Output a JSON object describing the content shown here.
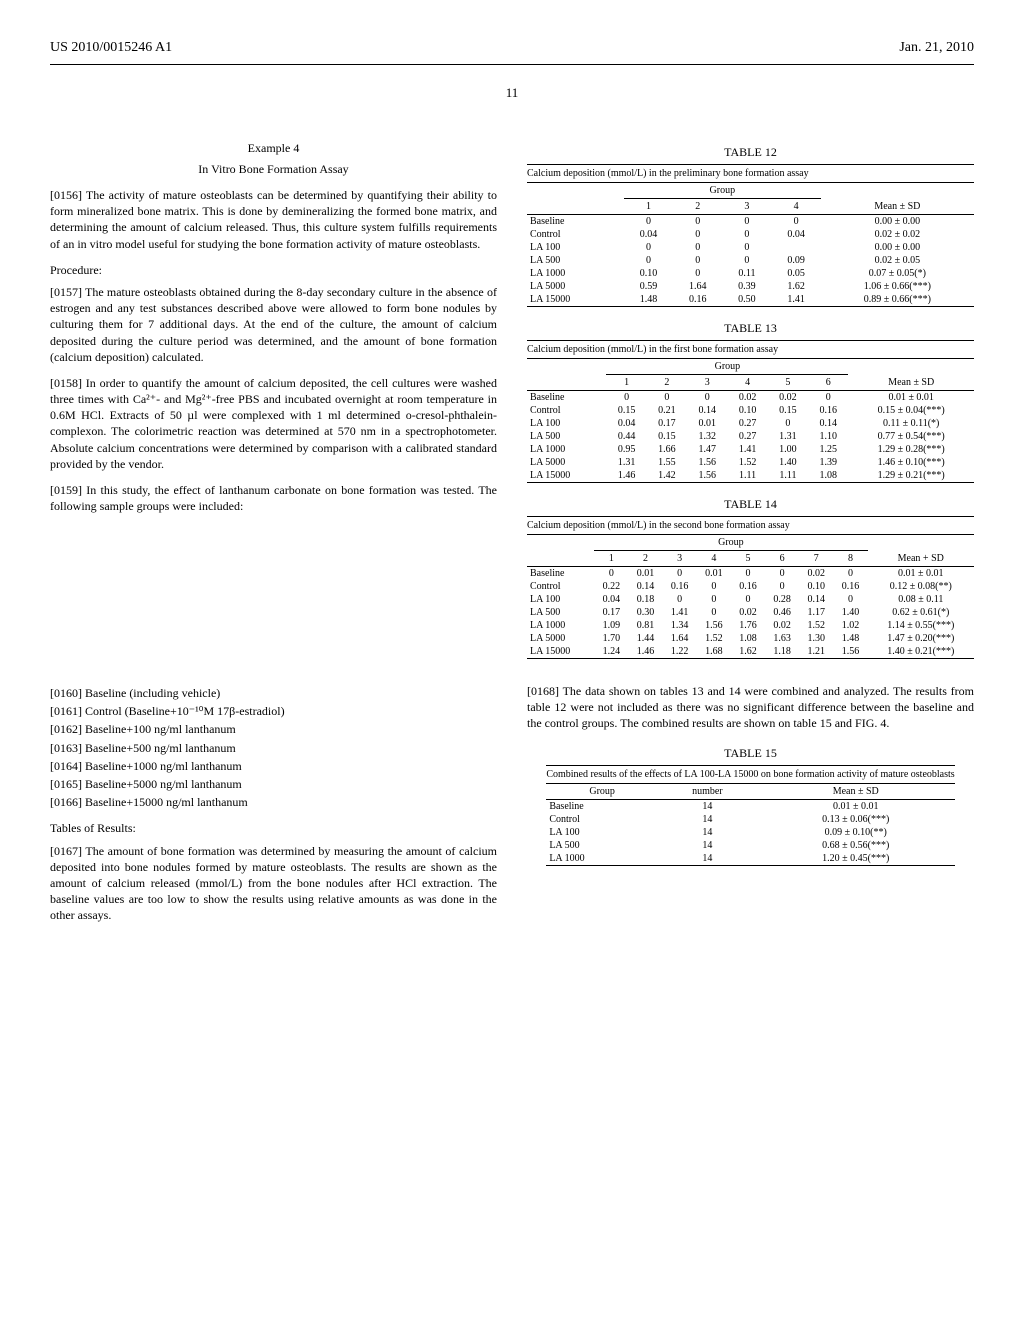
{
  "header": {
    "left": "US 2010/0015246 A1",
    "right": "Jan. 21, 2010"
  },
  "page_number": "11",
  "left_col": {
    "example_label": "Example 4",
    "example_title": "In Vitro Bone Formation Assay",
    "p156": "[0156]   The activity of mature osteoblasts can be determined by quantifying their ability to form mineralized bone matrix. This is done by demineralizing the formed bone matrix, and determining the amount of calcium released. Thus, this culture system fulfills requirements of an in vitro model useful for studying the bone formation activity of mature osteoblasts.",
    "procedure_label": "Procedure:",
    "p157": "[0157]   The mature osteoblasts obtained during the 8-day secondary culture in the absence of estrogen and any test substances described above were allowed to form bone nodules by culturing them for 7 additional days. At the end of the culture, the amount of calcium deposited during the culture period was determined, and the amount of bone formation (calcium deposition) calculated.",
    "p158": "[0158]   In order to quantify the amount of calcium deposited, the cell cultures were washed three times with Ca²⁺- and Mg²⁺-free PBS and incubated overnight at room temperature in 0.6M HCl. Extracts of 50 µl were complexed with 1 ml determined o-cresol-phthalein-complexon. The colorimetric reaction was determined at 570 nm in a spectrophotometer. Absolute calcium concentrations were determined by comparison with a calibrated standard provided by the vendor.",
    "p159": "[0159]   In this study, the effect of lanthanum carbonate on bone formation was tested. The following sample groups were included:",
    "list": [
      "[0160]   Baseline (including vehicle)",
      "[0161]   Control (Baseline+10⁻¹⁰M 17β-estradiol)",
      "[0162]   Baseline+100 ng/ml lanthanum",
      "[0163]   Baseline+500 ng/ml lanthanum",
      "[0164]   Baseline+1000 ng/ml lanthanum",
      "[0165]   Baseline+5000 ng/ml lanthanum",
      "[0166]   Baseline+15000 ng/ml lanthanum"
    ],
    "results_label": "Tables of Results:",
    "p167": "[0167]   The amount of bone formation was determined by measuring the amount of calcium deposited into bone nodules formed by mature osteoblasts. The results are shown as the amount of calcium released (mmol/L) from the bone nodules after HCl extraction. The baseline values are too low to show the results using relative amounts as was done in the other assays."
  },
  "table12": {
    "label": "TABLE 12",
    "caption": "Calcium deposition (mmol/L) in the preliminary bone formation assay",
    "group_label": "Group",
    "cols": [
      "",
      "1",
      "2",
      "3",
      "4",
      "Mean ± SD"
    ],
    "rows": [
      [
        "Baseline",
        "0",
        "0",
        "0",
        "0",
        "0.00 ± 0.00"
      ],
      [
        "Control",
        "0.04",
        "0",
        "0",
        "0.04",
        "0.02 ± 0.02"
      ],
      [
        "LA 100",
        "0",
        "0",
        "0",
        "",
        "0.00 ± 0.00"
      ],
      [
        "LA 500",
        "0",
        "0",
        "0",
        "0.09",
        "0.02 ± 0.05"
      ],
      [
        "LA 1000",
        "0.10",
        "0",
        "0.11",
        "0.05",
        "0.07 ± 0.05(*)"
      ],
      [
        "LA 5000",
        "0.59",
        "1.64",
        "0.39",
        "1.62",
        "1.06 ± 0.66(***)"
      ],
      [
        "LA 15000",
        "1.48",
        "0.16",
        "0.50",
        "1.41",
        "0.89 ± 0.66(***)"
      ]
    ]
  },
  "table13": {
    "label": "TABLE 13",
    "caption": "Calcium deposition (mmol/L) in the first bone formation assay",
    "group_label": "Group",
    "cols": [
      "",
      "1",
      "2",
      "3",
      "4",
      "5",
      "6",
      "Mean ± SD"
    ],
    "rows": [
      [
        "Baseline",
        "0",
        "0",
        "0",
        "0.02",
        "0.02",
        "0",
        "0.01 ± 0.01"
      ],
      [
        "Control",
        "0.15",
        "0.21",
        "0.14",
        "0.10",
        "0.15",
        "0.16",
        "0.15 ± 0.04(***)"
      ],
      [
        "LA 100",
        "0.04",
        "0.17",
        "0.01",
        "0.27",
        "0",
        "0.14",
        "0.11 ± 0.11(*)"
      ],
      [
        "LA 500",
        "0.44",
        "0.15",
        "1.32",
        "0.27",
        "1.31",
        "1.10",
        "0.77 ± 0.54(***)"
      ],
      [
        "LA 1000",
        "0.95",
        "1.66",
        "1.47",
        "1.41",
        "1.00",
        "1.25",
        "1.29 ± 0.28(***)"
      ],
      [
        "LA 5000",
        "1.31",
        "1.55",
        "1.56",
        "1.52",
        "1.40",
        "1.39",
        "1.46 ± 0.10(***)"
      ],
      [
        "LA 15000",
        "1.46",
        "1.42",
        "1.56",
        "1.11",
        "1.11",
        "1.08",
        "1.29 ± 0.21(***)"
      ]
    ]
  },
  "table14": {
    "label": "TABLE 14",
    "caption": "Calcium deposition (mmol/L) in the second bone formation assay",
    "group_label": "Group",
    "cols": [
      "",
      "1",
      "2",
      "3",
      "4",
      "5",
      "6",
      "7",
      "8",
      "Mean + SD"
    ],
    "rows": [
      [
        "Baseline",
        "0",
        "0.01",
        "0",
        "0.01",
        "0",
        "0",
        "0.02",
        "0",
        "0.01 ± 0.01"
      ],
      [
        "Control",
        "0.22",
        "0.14",
        "0.16",
        "0",
        "0.16",
        "0",
        "0.10",
        "0.16",
        "0.12 ± 0.08(**)"
      ],
      [
        "LA 100",
        "0.04",
        "0.18",
        "0",
        "0",
        "0",
        "0.28",
        "0.14",
        "0",
        "0.08 ± 0.11"
      ],
      [
        "LA 500",
        "0.17",
        "0.30",
        "1.41",
        "0",
        "0.02",
        "0.46",
        "1.17",
        "1.40",
        "0.62 ± 0.61(*)"
      ],
      [
        "LA 1000",
        "1.09",
        "0.81",
        "1.34",
        "1.56",
        "1.76",
        "0.02",
        "1.52",
        "1.02",
        "1.14 ± 0.55(***)"
      ],
      [
        "LA 5000",
        "1.70",
        "1.44",
        "1.64",
        "1.52",
        "1.08",
        "1.63",
        "1.30",
        "1.48",
        "1.47 ± 0.20(***)"
      ],
      [
        "LA 15000",
        "1.24",
        "1.46",
        "1.22",
        "1.68",
        "1.62",
        "1.18",
        "1.21",
        "1.56",
        "1.40 ± 0.21(***)"
      ]
    ]
  },
  "right_col": {
    "p168": "[0168]   The data shown on tables 13 and 14 were combined and analyzed. The results from table 12 were not included as there was no significant difference between the baseline and the control groups. The combined results are shown on table 15 and FIG. 4."
  },
  "table15": {
    "label": "TABLE 15",
    "caption": "Combined results of the effects of LA 100-LA 15000 on bone formation activity of mature osteoblasts",
    "cols": [
      "Group",
      "number",
      "Mean ± SD"
    ],
    "rows": [
      [
        "Baseline",
        "14",
        "0.01 ± 0.01"
      ],
      [
        "Control",
        "14",
        "0.13 ± 0.06(***)"
      ],
      [
        "LA 100",
        "14",
        "0.09 ± 0.10(**)"
      ],
      [
        "LA 500",
        "14",
        "0.68 ± 0.56(***)"
      ],
      [
        "LA 1000",
        "14",
        "1.20 ± 0.45(***)"
      ]
    ]
  }
}
